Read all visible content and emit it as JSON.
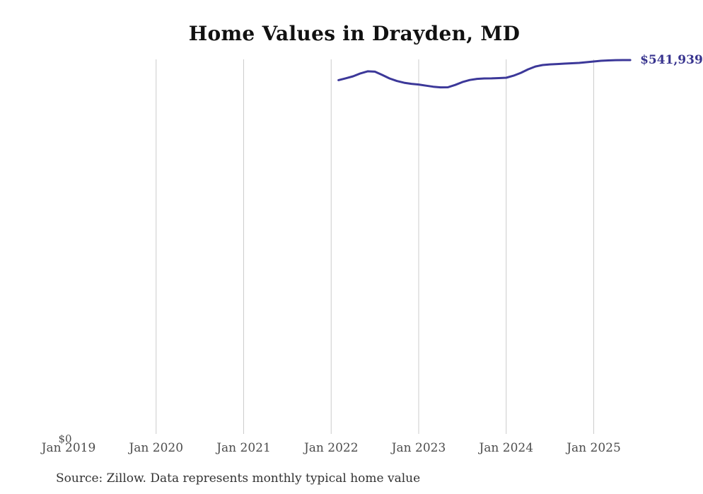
{
  "page": {
    "title": "Home Values in Drayden, MD",
    "source_note": "Source: Zillow. Data represents monthly typical home value"
  },
  "colors": {
    "line": "#3c3899",
    "gridline": "#cccccc",
    "title": "#111111",
    "axis_label": "#4d4d4d",
    "zero_label": "#4d4d4d",
    "value_label": "#39358f",
    "source": "#333333",
    "background": "#ffffff"
  },
  "chart_data": {
    "type": "line",
    "title": "Home Values in Drayden, MD",
    "series_name": "Monthly typical home value",
    "x_ticks": [
      "Jan 2019",
      "Jan 2020",
      "Jan 2021",
      "Jan 2022",
      "Jan 2023",
      "Jan 2024",
      "Jan 2025"
    ],
    "x_range_years": [
      2019,
      2025.5
    ],
    "ylim": [
      0,
      560000
    ],
    "y_zero_label": "$0",
    "latest_value_label": "$541,939",
    "grid": "vertical-yearly-from-2020",
    "legend": "none",
    "x": [
      "2022-02",
      "2022-03",
      "2022-04",
      "2022-05",
      "2022-06",
      "2022-07",
      "2022-08",
      "2022-09",
      "2022-10",
      "2022-11",
      "2022-12",
      "2023-01",
      "2023-02",
      "2023-03",
      "2023-04",
      "2023-05",
      "2023-06",
      "2023-07",
      "2023-08",
      "2023-09",
      "2023-10",
      "2023-11",
      "2023-12",
      "2024-01",
      "2024-02",
      "2024-03",
      "2024-04",
      "2024-05",
      "2024-06",
      "2024-07",
      "2024-08",
      "2024-09",
      "2024-10",
      "2024-11",
      "2024-12",
      "2025-01",
      "2025-02",
      "2025-03",
      "2025-04",
      "2025-05",
      "2025-06"
    ],
    "values": [
      513200,
      515800,
      518600,
      522800,
      525800,
      525300,
      520700,
      515600,
      512000,
      509400,
      507900,
      506900,
      505300,
      503800,
      502800,
      502900,
      506300,
      510400,
      513400,
      515000,
      515600,
      515700,
      516100,
      516600,
      519600,
      523600,
      528700,
      532700,
      534800,
      535800,
      536300,
      536900,
      537400,
      537900,
      538900,
      539900,
      540900,
      541400,
      541800,
      541900,
      541939
    ]
  }
}
